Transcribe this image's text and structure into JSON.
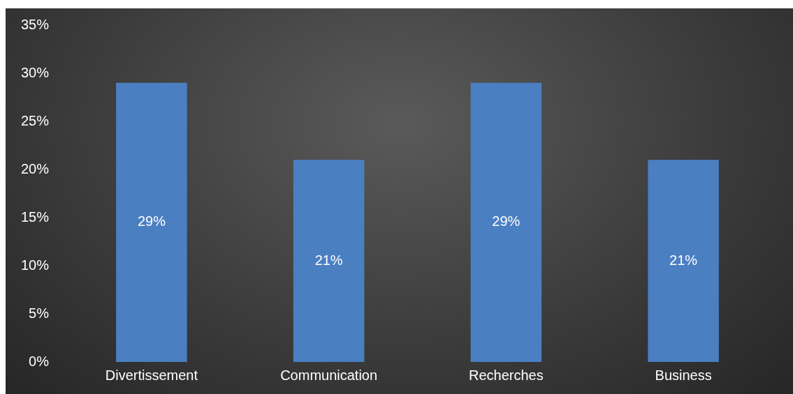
{
  "chart_data": {
    "type": "bar",
    "categories": [
      "Divertissement",
      "Communication",
      "Recherches",
      "Business"
    ],
    "values": [
      29,
      21,
      29,
      21
    ],
    "value_labels": [
      "29%",
      "21%",
      "29%",
      "21%"
    ],
    "color": "#4a7fc2",
    "ylim": [
      0,
      35
    ],
    "yticks": [
      {
        "value": 0,
        "label": "0%"
      },
      {
        "value": 5,
        "label": "5%"
      },
      {
        "value": 10,
        "label": "10%"
      },
      {
        "value": 15,
        "label": "15%"
      },
      {
        "value": 20,
        "label": "20%"
      },
      {
        "value": 25,
        "label": "25%"
      },
      {
        "value": 30,
        "label": "30%"
      },
      {
        "value": 35,
        "label": "35%"
      }
    ],
    "grid": false,
    "legend": false
  }
}
